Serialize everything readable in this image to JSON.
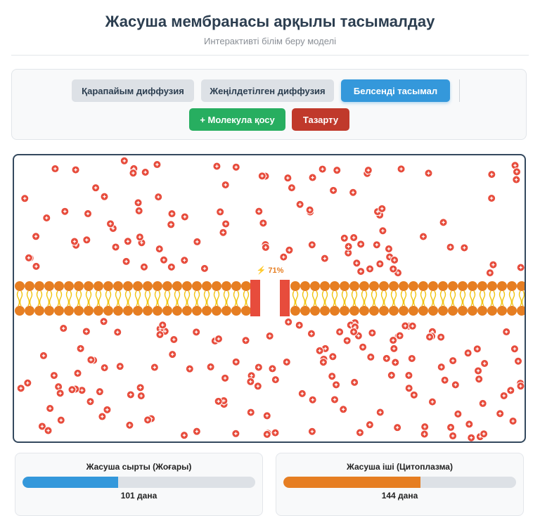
{
  "header": {
    "title": "Жасуша мембранасы арқылы тасымалдау",
    "subtitle": "Интерактивті білім беру моделі"
  },
  "controls": {
    "modes": [
      {
        "label": "Қарапайым диффузия",
        "active": false
      },
      {
        "label": "Жеңілдетілген диффузия",
        "active": false
      },
      {
        "label": "Белсенді тасымал",
        "active": true
      }
    ],
    "add_label": "+ Молекула қосу",
    "clear_label": "Тазарту"
  },
  "pump": {
    "indicator": "⚡ 71%",
    "color": "#e74c3c"
  },
  "colors": {
    "molecule": "#e74c3c",
    "lipid_head": "#e67e22",
    "lipid_tail": "#f1c40f",
    "outside_bar": "#3498db",
    "inside_bar": "#e67e22"
  },
  "stats": {
    "outside": {
      "title": "Жасуша сырты (Жоғары)",
      "value": "101 дана",
      "fraction": 0.41
    },
    "inside": {
      "title": "Жасуша іші (Цитоплазма)",
      "value": "144 дана",
      "fraction": 0.59
    }
  }
}
